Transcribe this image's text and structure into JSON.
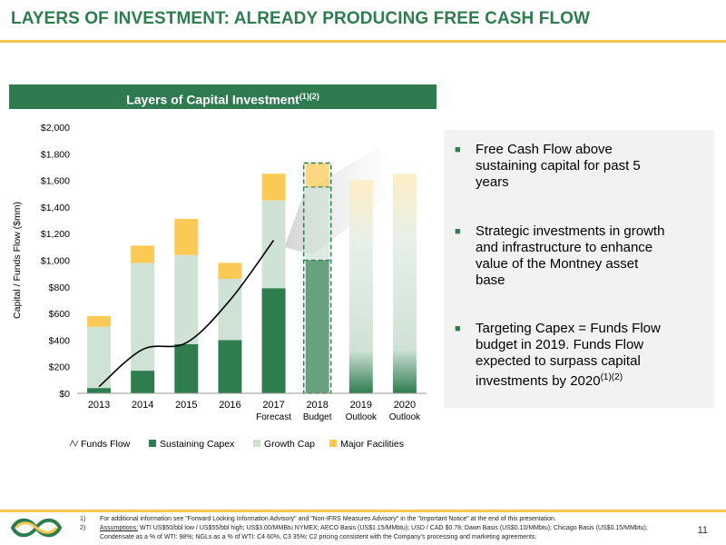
{
  "header": {
    "title": "LAYERS OF INVESTMENT:  ALREADY PRODUCING FREE CASH FLOW"
  },
  "section": {
    "title": "Layers of Capital Investment",
    "superscript": "(1)(2)"
  },
  "chart_data": {
    "type": "bar",
    "stacked": true,
    "ylabel": "Capital / Funds Flow ($mm)",
    "ylim": [
      0,
      2000
    ],
    "yticks": [
      "$0",
      "$200",
      "$400",
      "$600",
      "$800",
      "$1,000",
      "$1,200",
      "$1,400",
      "$1,600",
      "$1,800",
      "$2,000"
    ],
    "categories": [
      {
        "line1": "2013",
        "line2": ""
      },
      {
        "line1": "2014",
        "line2": ""
      },
      {
        "line1": "2015",
        "line2": ""
      },
      {
        "line1": "2016",
        "line2": ""
      },
      {
        "line1": "2017",
        "line2": "Forecast"
      },
      {
        "line1": "2018",
        "line2": "Budget"
      },
      {
        "line1": "2019",
        "line2": "Outlook"
      },
      {
        "line1": "2020",
        "line2": "Outlook"
      }
    ],
    "series": [
      {
        "name": "Sustaining Capex",
        "color": "#2e7d4f",
        "values": [
          40,
          170,
          370,
          400,
          790,
          1000,
          null,
          null
        ]
      },
      {
        "name": "Growth Cap",
        "color": "#cfe2d6",
        "values": [
          460,
          810,
          670,
          460,
          660,
          550,
          null,
          null
        ]
      },
      {
        "name": "Major Facilities",
        "color": "#fcc954",
        "values": [
          80,
          130,
          270,
          120,
          200,
          180,
          null,
          null
        ]
      }
    ],
    "outlook_totals": [
      1600,
      1650
    ],
    "funds_flow": {
      "name": "Funds Flow",
      "x_index": [
        0,
        1,
        2,
        3,
        4
      ],
      "values": [
        50,
        330,
        380,
        700,
        1150
      ]
    },
    "legend": [
      "Funds Flow",
      "Sustaining Capex",
      "Growth Cap",
      "Major Facilities"
    ],
    "legend_position": "bottom",
    "grid": false
  },
  "bullets": [
    {
      "lines": [
        "Free Cash Flow above",
        "sustaining capital for past 5",
        "years"
      ]
    },
    {
      "lines": [
        "Strategic investments in growth",
        "and infrastructure to enhance",
        "value of the Montney asset",
        "base"
      ]
    },
    {
      "lines": [
        "Targeting Capex = Funds Flow",
        "budget in 2019.  Funds Flow",
        "expected to surpass capital",
        "investments by 2020"
      ],
      "sup": "(1)(2)"
    }
  ],
  "footnotes": {
    "n1": "1)",
    "t1": "For additional information see \"Forward Looking Information Advisory\" and \"Non-IFRS Measures Advisory\" in the \"Important Notice\" at the end of this presentation.",
    "n2": "2)",
    "t2_label": "Assumptions:",
    "t2": " WTI US$50/bbl low / US$55/bbl high; US$3.00/MMBtu NYMEX; AECO Basis (US$1.15/MMbtu); USD / CAD $0.78; Dawn Basis (US$0.10/MMbtu); Chicago Basis (US$0.15/MMbtu); Condensate as a % of WTI: 98%; NGLs as a % of WTI: C4 60%, C3 35%; C2 pricing consistent with the Company's processing and marketing agreements."
  },
  "page": {
    "number": "11"
  },
  "colors": {
    "brand_green": "#2e7d4f",
    "gold": "#f6c750",
    "header_bar": "#2f7a4f"
  }
}
